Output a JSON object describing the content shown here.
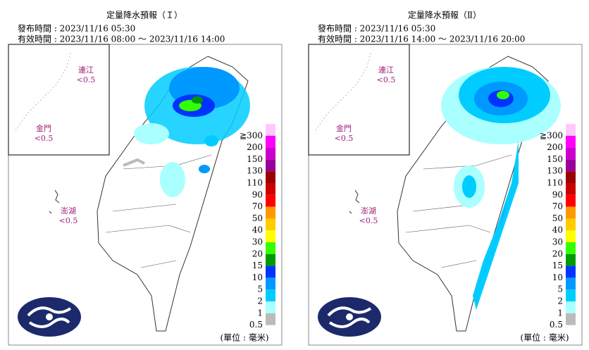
{
  "panels": [
    {
      "title": "定量降水預報（Ｉ）",
      "issued": "發布時間 : 2023/11/16 05:30",
      "valid": "有效時間 : 2023/11/16 08:00 ～ 2023/11/16 14:00",
      "labels": {
        "matsu": "連江",
        "matsu_value": "<0.5",
        "kinmen": "金門",
        "kinmen_value": "<0.5",
        "penghu": "澎湖",
        "penghu_value": "<0.5"
      },
      "unit": "(單位 : 毫米)"
    },
    {
      "title": "定量降水預報（Ⅱ）",
      "issued": "發布時間 : 2023/11/16 05:30",
      "valid": "有效時間 : 2023/11/16 14:00 ～ 2023/11/16 20:00",
      "labels": {
        "matsu": "連江",
        "matsu_value": "<0.5",
        "kinmen": "金門",
        "kinmen_value": "<0.5",
        "penghu": "澎湖",
        "penghu_value": "<0.5"
      },
      "unit": "(單位 : 毫米)"
    }
  ],
  "legend": {
    "levels": [
      "≧300",
      "200",
      "150",
      "130",
      "110",
      "90",
      "70",
      "50",
      "40",
      "30",
      "20",
      "15",
      "10",
      "5",
      "2",
      "1",
      "0.5"
    ],
    "colors": [
      "#ffc8ff",
      "#ff00ff",
      "#cc00cc",
      "#990099",
      "#990000",
      "#cc0000",
      "#ff0000",
      "#ff9900",
      "#ffcc00",
      "#ffff00",
      "#33ff00",
      "#009900",
      "#0033ff",
      "#0099ff",
      "#00ccff",
      "#aaffff",
      "#bbbbbb"
    ]
  }
}
